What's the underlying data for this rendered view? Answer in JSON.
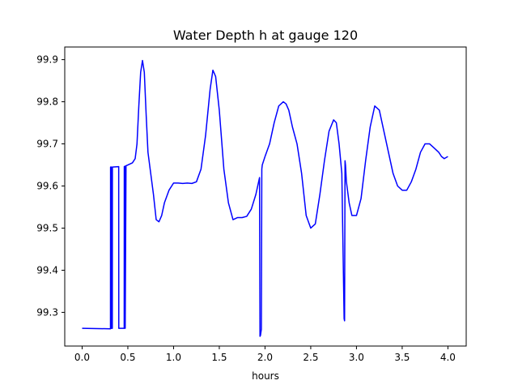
{
  "chart_data": {
    "type": "line",
    "title": "Water Depth h at gauge 120",
    "xlabel": "hours",
    "ylabel": "",
    "xlim": [
      -0.19,
      4.2
    ],
    "ylim": [
      99.22,
      99.93
    ],
    "xticks": [
      0.0,
      0.5,
      1.0,
      1.5,
      2.0,
      2.5,
      3.0,
      3.5,
      4.0
    ],
    "xtick_labels": [
      "0.0",
      "0.5",
      "1.0",
      "1.5",
      "2.0",
      "2.5",
      "3.0",
      "3.5",
      "4.0"
    ],
    "yticks": [
      99.3,
      99.4,
      99.5,
      99.6,
      99.7,
      99.8,
      99.9
    ],
    "ytick_labels": [
      "99.3",
      "99.4",
      "99.5",
      "99.6",
      "99.7",
      "99.8",
      "99.9"
    ],
    "grid": false,
    "series": [
      {
        "name": "",
        "color": "#0000ff",
        "x": [
          0.0,
          0.31,
          0.311,
          0.32,
          0.321,
          0.33,
          0.331,
          0.4,
          0.401,
          0.46,
          0.461,
          0.47,
          0.471,
          0.48,
          0.5,
          0.55,
          0.58,
          0.6,
          0.62,
          0.64,
          0.66,
          0.68,
          0.7,
          0.72,
          0.75,
          0.78,
          0.81,
          0.84,
          0.87,
          0.9,
          0.95,
          1.0,
          1.05,
          1.1,
          1.15,
          1.2,
          1.25,
          1.3,
          1.35,
          1.4,
          1.43,
          1.46,
          1.5,
          1.55,
          1.6,
          1.65,
          1.7,
          1.75,
          1.8,
          1.85,
          1.9,
          1.94,
          1.945,
          1.95,
          1.96,
          1.965,
          1.97,
          2.0,
          2.05,
          2.1,
          2.15,
          2.2,
          2.23,
          2.26,
          2.3,
          2.35,
          2.4,
          2.45,
          2.5,
          2.55,
          2.6,
          2.65,
          2.7,
          2.75,
          2.78,
          2.81,
          2.84,
          2.865,
          2.87,
          2.875,
          2.88,
          2.89,
          2.92,
          2.95,
          3.0,
          3.05,
          3.1,
          3.15,
          3.2,
          3.25,
          3.3,
          3.35,
          3.4,
          3.45,
          3.5,
          3.55,
          3.6,
          3.65,
          3.7,
          3.75,
          3.8,
          3.85,
          3.9,
          3.93,
          3.96,
          4.0
        ],
        "y": [
          99.262,
          99.261,
          99.645,
          99.645,
          99.262,
          99.262,
          99.645,
          99.646,
          99.262,
          99.262,
          99.646,
          99.647,
          99.262,
          99.648,
          99.65,
          99.655,
          99.665,
          99.7,
          99.79,
          99.87,
          99.898,
          99.87,
          99.77,
          99.68,
          99.63,
          99.58,
          99.52,
          99.515,
          99.53,
          99.56,
          99.59,
          99.607,
          99.607,
          99.606,
          99.607,
          99.606,
          99.61,
          99.64,
          99.72,
          99.83,
          99.875,
          99.86,
          99.78,
          99.64,
          99.56,
          99.52,
          99.525,
          99.525,
          99.528,
          99.545,
          99.58,
          99.62,
          99.243,
          99.245,
          99.26,
          99.64,
          99.65,
          99.67,
          99.7,
          99.75,
          99.79,
          99.8,
          99.795,
          99.78,
          99.74,
          99.7,
          99.63,
          99.53,
          99.5,
          99.51,
          99.58,
          99.66,
          99.73,
          99.757,
          99.75,
          99.7,
          99.63,
          99.285,
          99.28,
          99.66,
          99.65,
          99.61,
          99.56,
          99.53,
          99.53,
          99.57,
          99.66,
          99.74,
          99.79,
          99.78,
          99.73,
          99.68,
          99.63,
          99.6,
          99.59,
          99.59,
          99.61,
          99.64,
          99.68,
          99.7,
          99.7,
          99.69,
          99.68,
          99.67,
          99.665,
          99.67
        ]
      }
    ]
  }
}
